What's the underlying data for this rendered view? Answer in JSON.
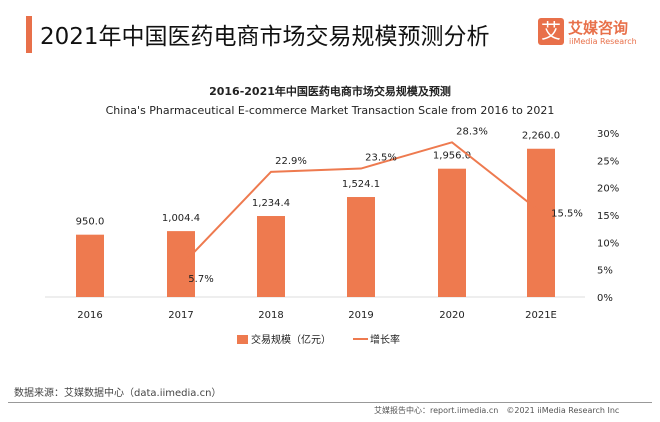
{
  "header": {
    "title": "2021年中国医药电商市场交易规模预测分析",
    "logo_cn": "艾媒咨询",
    "logo_en": "iiMedia Research",
    "logo_mark": "艾"
  },
  "chart_data": {
    "type": "bar+line",
    "title": "2016-2021年中国医药电商市场交易规模及预测",
    "subtitle": "China's Pharmaceutical E-commerce Market Transaction Scale from 2016 to 2021",
    "categories": [
      "2016",
      "2017",
      "2018",
      "2019",
      "2020",
      "2021E"
    ],
    "series": [
      {
        "name": "交易规模（亿元）",
        "type": "bar",
        "axis": "left",
        "values": [
          950.0,
          1004.4,
          1234.4,
          1524.1,
          1956.0,
          2260.0
        ],
        "labels": [
          "950.0",
          "1,004.4",
          "1,234.4",
          "1,524.1",
          "1,956.0",
          "2,260.0"
        ],
        "color": "#ee7a4f"
      },
      {
        "name": "增长率",
        "type": "line",
        "axis": "right",
        "values": [
          null,
          5.7,
          22.9,
          23.5,
          28.3,
          15.5
        ],
        "labels": [
          "",
          "5.7%",
          "22.9%",
          "23.5%",
          "28.3%",
          "15.5%"
        ],
        "color": "#ee7a4f"
      }
    ],
    "y_left": {
      "range": [
        0,
        2500
      ],
      "visible": false
    },
    "y_right": {
      "range": [
        0,
        30
      ],
      "ticks": [
        "0%",
        "5%",
        "10%",
        "15%",
        "20%",
        "25%",
        "30%"
      ]
    },
    "legend": "bottom",
    "grid": false
  },
  "footer": {
    "source": "数据来源：艾媒数据中心（data.iimedia.cn）",
    "credit": "艾媒报告中心：report.iimedia.cn　©2021  iiMedia Research  Inc"
  }
}
